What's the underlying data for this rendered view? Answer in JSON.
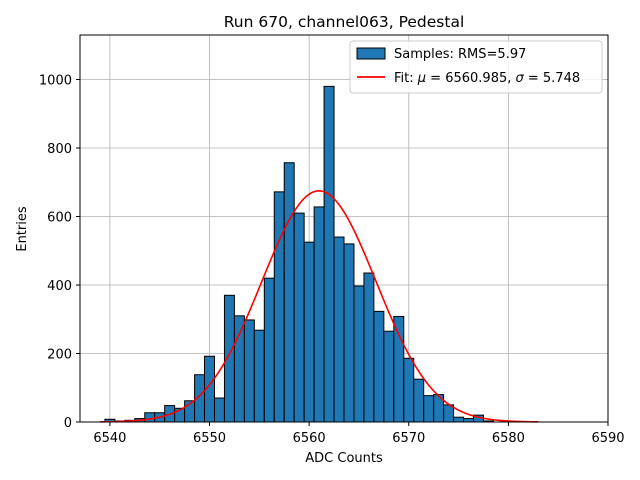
{
  "chart_data": {
    "type": "bar",
    "title": "Run 670, channel063, Pedestal",
    "xlabel": "ADC Counts",
    "ylabel": "Entries",
    "xlim": [
      6537,
      6590
    ],
    "ylim": [
      0,
      1130
    ],
    "xticks": [
      6540,
      6550,
      6560,
      6570,
      6580,
      6590
    ],
    "yticks": [
      0,
      200,
      400,
      600,
      800,
      1000
    ],
    "grid": true,
    "legend_position": "top-right",
    "bin_width": 1,
    "histogram": {
      "name": "Samples: RMS=5.97",
      "color": "#1f77b4",
      "edge_color": "#000000",
      "bins": [
        {
          "x": 6540,
          "count": 8
        },
        {
          "x": 6541,
          "count": 3
        },
        {
          "x": 6542,
          "count": 5
        },
        {
          "x": 6543,
          "count": 10
        },
        {
          "x": 6544,
          "count": 27
        },
        {
          "x": 6545,
          "count": 27
        },
        {
          "x": 6546,
          "count": 48
        },
        {
          "x": 6547,
          "count": 40
        },
        {
          "x": 6548,
          "count": 62
        },
        {
          "x": 6549,
          "count": 138
        },
        {
          "x": 6550,
          "count": 192
        },
        {
          "x": 6551,
          "count": 70
        },
        {
          "x": 6552,
          "count": 370
        },
        {
          "x": 6553,
          "count": 310
        },
        {
          "x": 6554,
          "count": 298
        },
        {
          "x": 6555,
          "count": 268
        },
        {
          "x": 6556,
          "count": 420
        },
        {
          "x": 6557,
          "count": 672
        },
        {
          "x": 6558,
          "count": 757
        },
        {
          "x": 6559,
          "count": 610
        },
        {
          "x": 6560,
          "count": 525
        },
        {
          "x": 6561,
          "count": 628
        },
        {
          "x": 6562,
          "count": 980
        },
        {
          "x": 6563,
          "count": 540
        },
        {
          "x": 6564,
          "count": 520
        },
        {
          "x": 6565,
          "count": 397
        },
        {
          "x": 6566,
          "count": 435
        },
        {
          "x": 6567,
          "count": 323
        },
        {
          "x": 6568,
          "count": 265
        },
        {
          "x": 6569,
          "count": 308
        },
        {
          "x": 6570,
          "count": 186
        },
        {
          "x": 6571,
          "count": 125
        },
        {
          "x": 6572,
          "count": 77
        },
        {
          "x": 6573,
          "count": 80
        },
        {
          "x": 6574,
          "count": 50
        },
        {
          "x": 6575,
          "count": 14
        },
        {
          "x": 6576,
          "count": 10
        },
        {
          "x": 6577,
          "count": 20
        },
        {
          "x": 6578,
          "count": 3
        }
      ]
    },
    "fit": {
      "name_prefix": "Fit: ",
      "mu_symbol": "μ",
      "mu_text": " = 6560.985, ",
      "sigma_symbol": "σ",
      "sigma_text": " = 5.748",
      "color": "#ff0000",
      "mu": 6560.985,
      "sigma": 5.748,
      "amplitude": 675,
      "x_range": [
        6539,
        6583
      ]
    }
  }
}
